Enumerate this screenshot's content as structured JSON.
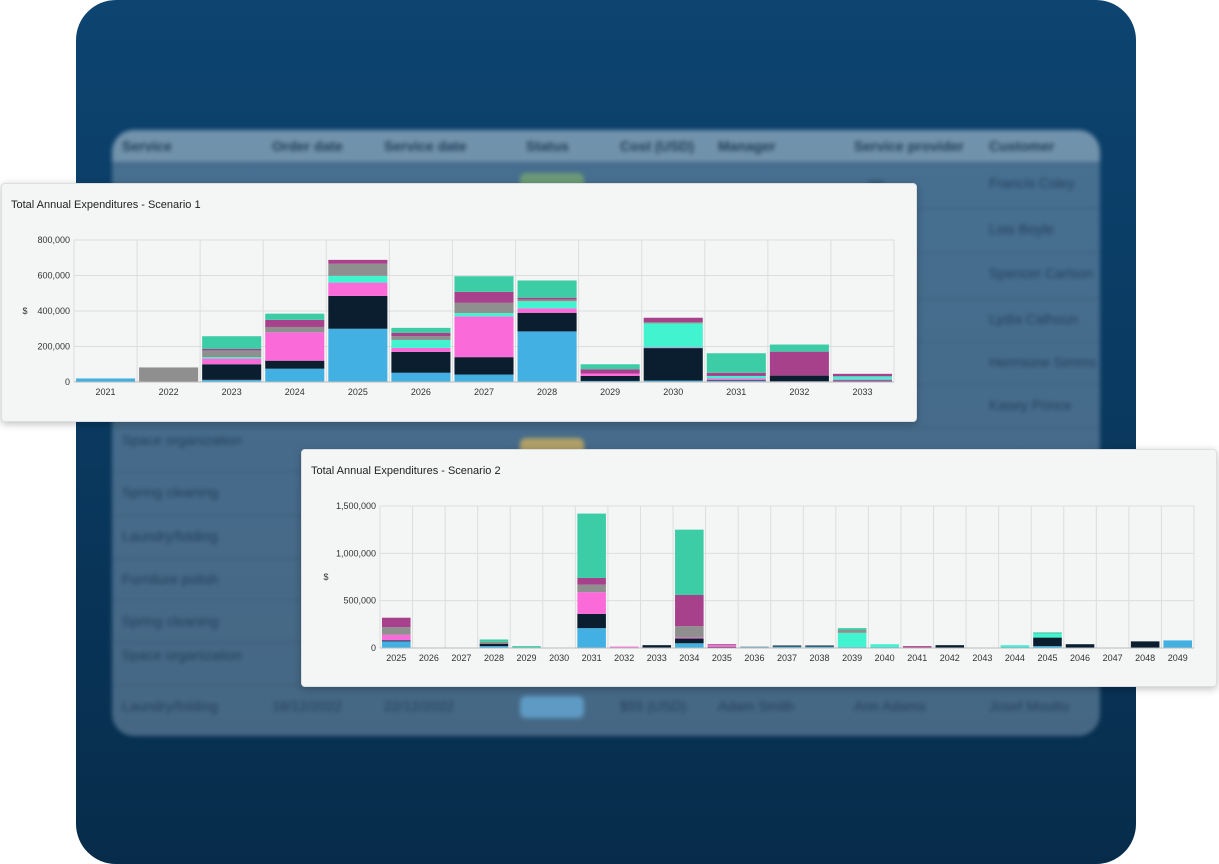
{
  "background_table": {
    "headers": [
      "Service",
      "Order date",
      "Service date",
      "Status",
      "Cost (USD)",
      "Manager",
      "Service provider",
      "Customer"
    ],
    "rows": [
      {
        "service": "",
        "order_date": "",
        "service_date": "",
        "cost": "",
        "manager": "",
        "provider": "…on",
        "customer": "Francis Coley"
      },
      {
        "service": "",
        "order_date": "",
        "service_date": "",
        "cost": "",
        "manager": "",
        "provider": "…n",
        "customer": "Lois Boyle"
      },
      {
        "service": "",
        "order_date": "",
        "service_date": "",
        "cost": "",
        "manager": "",
        "provider": "…la",
        "customer": "Spencer Carlson"
      },
      {
        "service": "",
        "order_date": "",
        "service_date": "",
        "cost": "",
        "manager": "",
        "provider": "…e",
        "customer": "Lydia Calhoun"
      },
      {
        "service": "",
        "order_date": "",
        "service_date": "",
        "cost": "",
        "manager": "",
        "provider": "…lon",
        "customer": "Hermione Simms"
      },
      {
        "service": "",
        "order_date": "",
        "service_date": "",
        "cost": "",
        "manager": "",
        "provider": "…lo",
        "customer": "Kasey Prince"
      },
      {
        "service": "Space organization",
        "order_date": "",
        "service_date": "",
        "cost": "",
        "manager": "",
        "provider": "",
        "customer": ""
      },
      {
        "service": "Spring cleaning",
        "order_date": "",
        "service_date": "",
        "cost": "",
        "manager": "",
        "provider": "",
        "customer": ""
      },
      {
        "service": "Laundry/folding",
        "order_date": "",
        "service_date": "",
        "cost": "",
        "manager": "",
        "provider": "",
        "customer": ""
      },
      {
        "service": "Furniture polish",
        "order_date": "",
        "service_date": "",
        "cost": "",
        "manager": "",
        "provider": "",
        "customer": ""
      },
      {
        "service": "Spring cleaning",
        "order_date": "",
        "service_date": "",
        "cost": "",
        "manager": "",
        "provider": "",
        "customer": ""
      },
      {
        "service": "Space organization",
        "order_date": "",
        "service_date": "",
        "cost": "",
        "manager": "",
        "provider": "",
        "customer": ""
      },
      {
        "service": "Laundry/folding",
        "order_date": "18/12/2022",
        "service_date": "22/12/2022",
        "cost": "$55 (USD)",
        "manager": "Adam Smith",
        "provider": "Ann Adams",
        "customer": "Josef Moutto"
      }
    ]
  },
  "colors": {
    "blue": "#42b0e2",
    "navy": "#0a1e30",
    "pink": "#fa6ad9",
    "aqua": "#41f3cf",
    "gray": "#8f8f8f",
    "purple": "#a8418c",
    "teal": "#3ccda6",
    "grid": "#dddddd",
    "accent_bg": "#0b3e66"
  },
  "chart_data": [
    {
      "type": "bar",
      "stacked": true,
      "title": "Total Annual Expenditures - Scenario 1",
      "xlabel": "",
      "ylabel": "$",
      "ylim": [
        0,
        800000
      ],
      "yticks": [
        0,
        200000,
        400000,
        600000,
        800000
      ],
      "ytick_labels": [
        "0",
        "200,000",
        "400,000",
        "600,000",
        "800,000"
      ],
      "grid": true,
      "legend": "none",
      "categories": [
        "2021",
        "2022",
        "2023",
        "2024",
        "2025",
        "2026",
        "2027",
        "2028",
        "2029",
        "2030",
        "2031",
        "2032",
        "2033"
      ],
      "series": [
        {
          "color": "blue",
          "values": [
            20000,
            0,
            12000,
            75000,
            300000,
            52000,
            42000,
            285000,
            6000,
            8000,
            6000,
            4000,
            4000
          ]
        },
        {
          "color": "navy",
          "values": [
            0,
            0,
            88000,
            45000,
            185000,
            118000,
            98000,
            105000,
            28000,
            183000,
            4000,
            32000,
            4000
          ]
        },
        {
          "color": "pink",
          "values": [
            0,
            0,
            32000,
            160000,
            75000,
            22000,
            230000,
            25000,
            14000,
            4000,
            10000,
            0,
            6000
          ]
        },
        {
          "color": "aqua",
          "values": [
            0,
            0,
            8000,
            0,
            38000,
            45000,
            18000,
            40000,
            0,
            135000,
            14000,
            0,
            18000
          ]
        },
        {
          "color": "gray",
          "values": [
            0,
            82000,
            38000,
            30000,
            68000,
            22000,
            58000,
            10000,
            0,
            8000,
            0,
            0,
            0
          ]
        },
        {
          "color": "purple",
          "values": [
            0,
            0,
            8000,
            40000,
            22000,
            18000,
            62000,
            10000,
            24000,
            24000,
            18000,
            135000,
            14000
          ]
        },
        {
          "color": "teal",
          "values": [
            0,
            0,
            72000,
            35000,
            0,
            28000,
            88000,
            97000,
            28000,
            0,
            110000,
            40000,
            0
          ]
        }
      ]
    },
    {
      "type": "bar",
      "stacked": true,
      "title": "Total Annual Expenditures - Scenario 2",
      "xlabel": "",
      "ylabel": "$",
      "ylim": [
        0,
        1500000
      ],
      "yticks": [
        0,
        500000,
        1000000,
        1500000
      ],
      "ytick_labels": [
        "0",
        "500,000",
        "1,000,000",
        "1,500,000"
      ],
      "grid": true,
      "legend": "none",
      "categories": [
        "2025",
        "2026",
        "2027",
        "2028",
        "2029",
        "2030",
        "2031",
        "2032",
        "2033",
        "2034",
        "2035",
        "2036",
        "2037",
        "2038",
        "2039",
        "2040",
        "2041",
        "2042",
        "2043",
        "2044",
        "2045",
        "2046",
        "2047",
        "2048",
        "2049"
      ],
      "series": [
        {
          "color": "blue",
          "values": [
            70000,
            0,
            0,
            20000,
            5000,
            0,
            210000,
            0,
            5000,
            50000,
            0,
            10000,
            15000,
            15000,
            10000,
            10000,
            0,
            0,
            0,
            10000,
            20000,
            0,
            0,
            0,
            80000
          ]
        },
        {
          "color": "navy",
          "values": [
            10000,
            0,
            0,
            25000,
            0,
            0,
            150000,
            0,
            25000,
            50000,
            10000,
            0,
            10000,
            10000,
            0,
            0,
            0,
            30000,
            0,
            0,
            90000,
            40000,
            0,
            70000,
            0
          ]
        },
        {
          "color": "pink",
          "values": [
            60000,
            0,
            0,
            0,
            0,
            0,
            230000,
            15000,
            0,
            10000,
            20000,
            0,
            0,
            0,
            0,
            0,
            0,
            0,
            0,
            0,
            0,
            0,
            0,
            0,
            0
          ]
        },
        {
          "color": "aqua",
          "values": [
            0,
            0,
            0,
            0,
            0,
            0,
            0,
            0,
            0,
            0,
            0,
            0,
            0,
            0,
            150000,
            30000,
            0,
            0,
            0,
            20000,
            40000,
            0,
            0,
            0,
            0
          ]
        },
        {
          "color": "gray",
          "values": [
            80000,
            0,
            0,
            20000,
            0,
            0,
            80000,
            0,
            0,
            120000,
            0,
            5000,
            5000,
            5000,
            30000,
            0,
            0,
            0,
            0,
            0,
            0,
            0,
            0,
            0,
            0
          ]
        },
        {
          "color": "purple",
          "values": [
            100000,
            0,
            0,
            0,
            0,
            0,
            70000,
            0,
            0,
            330000,
            10000,
            0,
            0,
            0,
            0,
            0,
            20000,
            0,
            0,
            0,
            0,
            0,
            0,
            0,
            0
          ]
        },
        {
          "color": "teal",
          "values": [
            0,
            0,
            0,
            25000,
            15000,
            0,
            680000,
            0,
            0,
            690000,
            0,
            0,
            0,
            0,
            20000,
            0,
            0,
            0,
            0,
            0,
            15000,
            0,
            0,
            0,
            0
          ]
        }
      ]
    }
  ]
}
